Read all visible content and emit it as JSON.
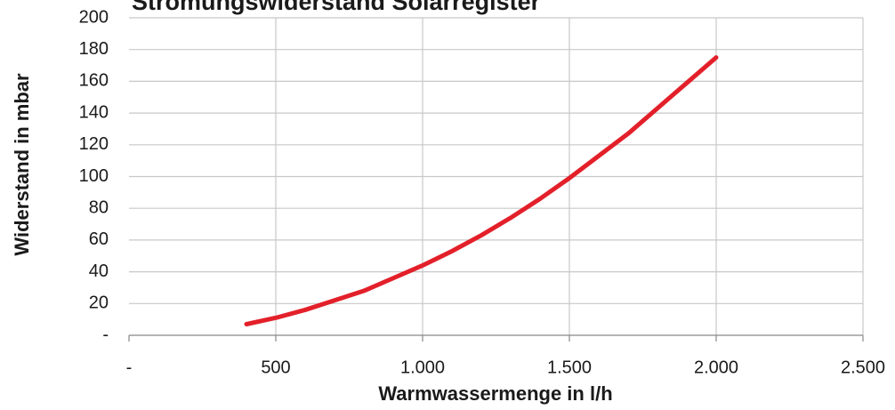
{
  "chart_data": {
    "type": "line",
    "title": "Strömungswiderstand Solarregister",
    "xlabel": "Warmwassermenge in l/h",
    "ylabel": "Widerstand in mbar",
    "x": [
      400,
      500,
      600,
      700,
      800,
      900,
      1000,
      1100,
      1200,
      1300,
      1400,
      1500,
      1600,
      1700,
      1800,
      1900,
      2000
    ],
    "series": [
      {
        "name": "Widerstand",
        "color": "#e3202a",
        "values": [
          7,
          11,
          16,
          22,
          28,
          36,
          44,
          53,
          63,
          74,
          86,
          99,
          113,
          127,
          143,
          159,
          175
        ]
      }
    ],
    "xlim": [
      0,
      2500
    ],
    "xticks": [
      {
        "value": 0,
        "label": "-"
      },
      500,
      {
        "value": 1000,
        "label": "1.000"
      },
      {
        "value": 1500,
        "label": "1.500"
      },
      {
        "value": 2000,
        "label": "2.000"
      },
      {
        "value": 2500,
        "label": "2.500"
      }
    ],
    "ylim": [
      0,
      200
    ],
    "yticks": [
      {
        "value": 0,
        "label": "-"
      },
      20,
      40,
      60,
      80,
      100,
      120,
      140,
      160,
      180,
      200
    ],
    "grid": true
  }
}
